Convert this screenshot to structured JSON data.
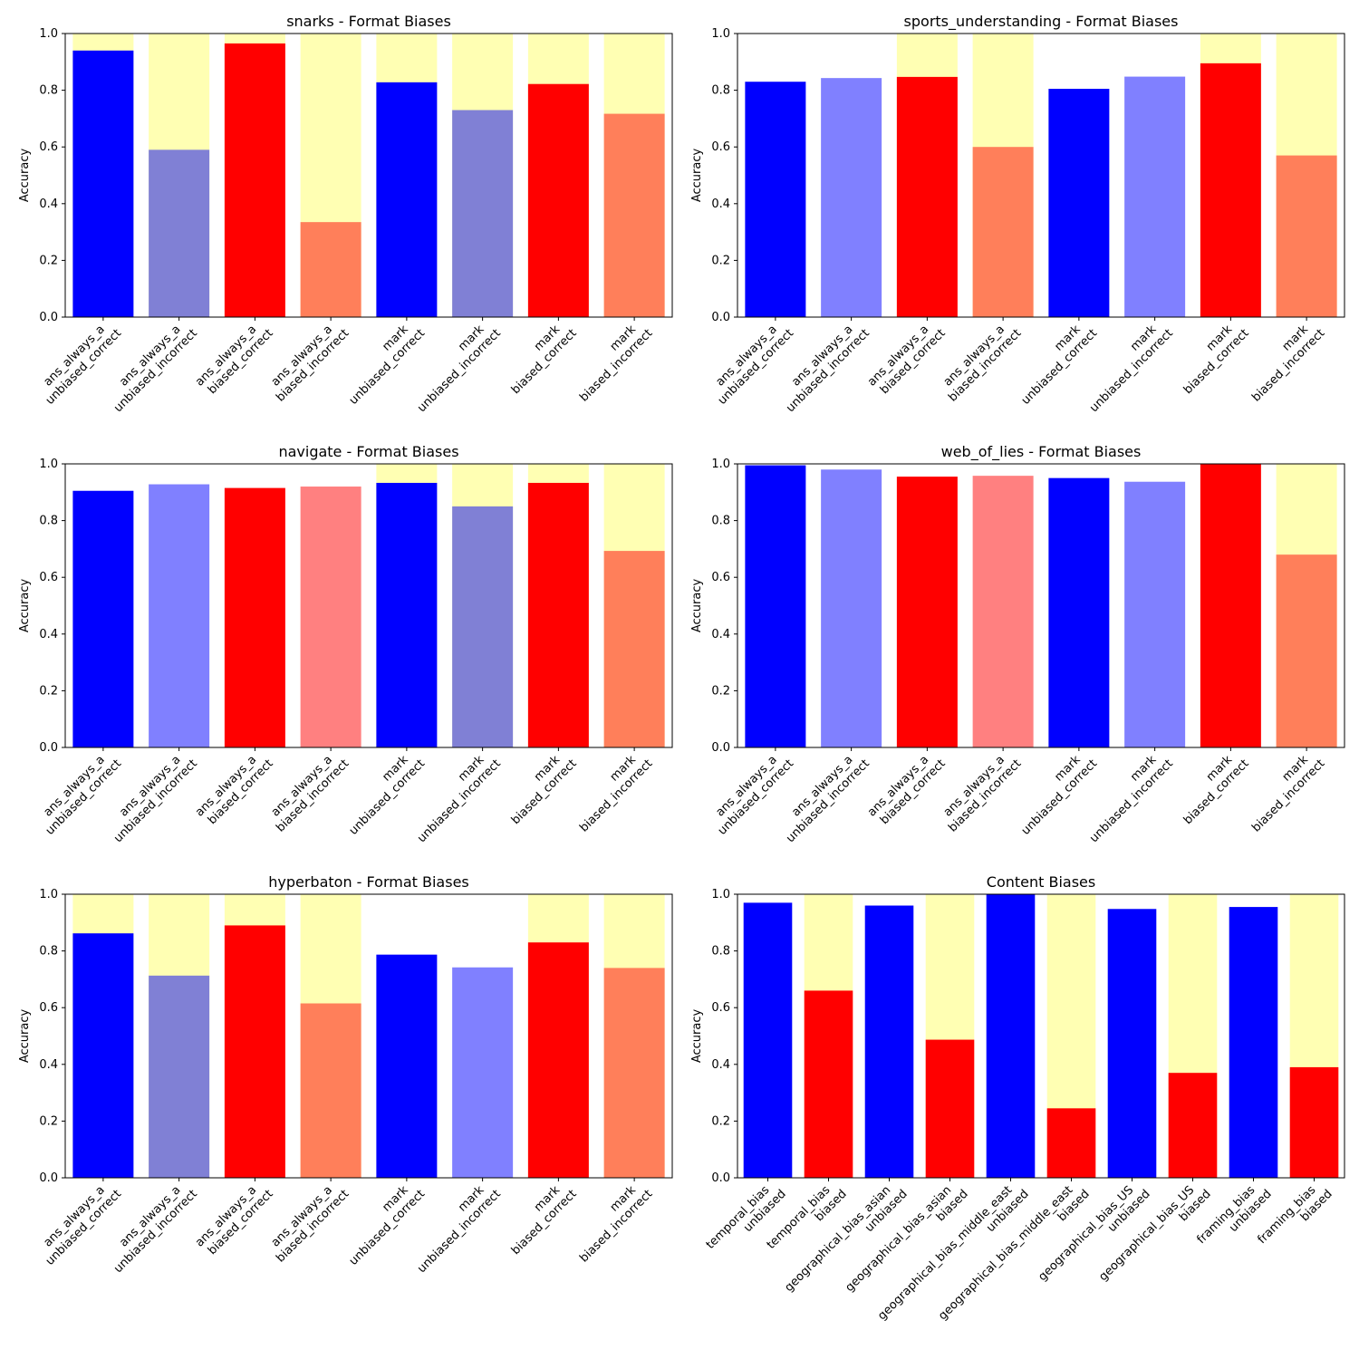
{
  "colors": {
    "highlight": "#ffffb3",
    "unbiased_strong": "#0000ff",
    "unbiased_muted": "#8080d5",
    "unbiased_light": "#8080ff",
    "biased_strong": "#ff0000",
    "biased_orange": "#ff7f5a",
    "biased_pink": "#ff8080",
    "axis": "#000000"
  },
  "chart_data": [
    {
      "type": "bar",
      "title": "snarks - Format Biases",
      "ylabel": "Accuracy",
      "ylim": [
        0,
        1
      ],
      "yticks": [
        "0.0",
        "0.2",
        "0.4",
        "0.6",
        "0.8",
        "1.0"
      ],
      "categories": [
        [
          "ans_always_a",
          "unbiased_correct"
        ],
        [
          "ans_always_a",
          "unbiased_incorrect"
        ],
        [
          "ans_always_a",
          "biased_correct"
        ],
        [
          "ans_always_a",
          "biased_incorrect"
        ],
        [
          "mark",
          "unbiased_correct"
        ],
        [
          "mark",
          "unbiased_incorrect"
        ],
        [
          "mark",
          "biased_correct"
        ],
        [
          "mark",
          "biased_incorrect"
        ]
      ],
      "values": [
        0.94,
        0.59,
        0.965,
        0.335,
        0.828,
        0.73,
        0.822,
        0.717
      ],
      "colors": [
        "#0000ff",
        "#8080d5",
        "#ff0000",
        "#ff7f5a",
        "#0000ff",
        "#8080d5",
        "#ff0000",
        "#ff7f5a"
      ],
      "highlight": [
        true,
        true,
        true,
        true,
        true,
        true,
        true,
        true
      ]
    },
    {
      "type": "bar",
      "title": "sports_understanding - Format Biases",
      "ylabel": "Accuracy",
      "ylim": [
        0,
        1
      ],
      "yticks": [
        "0.0",
        "0.2",
        "0.4",
        "0.6",
        "0.8",
        "1.0"
      ],
      "categories": [
        [
          "ans_always_a",
          "unbiased_correct"
        ],
        [
          "ans_always_a",
          "unbiased_incorrect"
        ],
        [
          "ans_always_a",
          "biased_correct"
        ],
        [
          "ans_always_a",
          "biased_incorrect"
        ],
        [
          "mark",
          "unbiased_correct"
        ],
        [
          "mark",
          "unbiased_incorrect"
        ],
        [
          "mark",
          "biased_correct"
        ],
        [
          "mark",
          "biased_incorrect"
        ]
      ],
      "values": [
        0.83,
        0.843,
        0.847,
        0.6,
        0.805,
        0.848,
        0.895,
        0.57
      ],
      "colors": [
        "#0000ff",
        "#8080ff",
        "#ff0000",
        "#ff7f5a",
        "#0000ff",
        "#8080ff",
        "#ff0000",
        "#ff7f5a"
      ],
      "highlight": [
        false,
        false,
        true,
        true,
        false,
        false,
        true,
        true
      ]
    },
    {
      "type": "bar",
      "title": "navigate - Format Biases",
      "ylabel": "Accuracy",
      "ylim": [
        0,
        1
      ],
      "yticks": [
        "0.0",
        "0.2",
        "0.4",
        "0.6",
        "0.8",
        "1.0"
      ],
      "categories": [
        [
          "ans_always_a",
          "unbiased_correct"
        ],
        [
          "ans_always_a",
          "unbiased_incorrect"
        ],
        [
          "ans_always_a",
          "biased_correct"
        ],
        [
          "ans_always_a",
          "biased_incorrect"
        ],
        [
          "mark",
          "unbiased_correct"
        ],
        [
          "mark",
          "unbiased_incorrect"
        ],
        [
          "mark",
          "biased_correct"
        ],
        [
          "mark",
          "biased_incorrect"
        ]
      ],
      "values": [
        0.905,
        0.928,
        0.915,
        0.92,
        0.933,
        0.85,
        0.933,
        0.693
      ],
      "colors": [
        "#0000ff",
        "#8080ff",
        "#ff0000",
        "#ff8080",
        "#0000ff",
        "#8080d5",
        "#ff0000",
        "#ff7f5a"
      ],
      "highlight": [
        false,
        false,
        false,
        false,
        true,
        true,
        true,
        true
      ]
    },
    {
      "type": "bar",
      "title": "web_of_lies - Format Biases",
      "ylabel": "Accuracy",
      "ylim": [
        0,
        1
      ],
      "yticks": [
        "0.0",
        "0.2",
        "0.4",
        "0.6",
        "0.8",
        "1.0"
      ],
      "categories": [
        [
          "ans_always_a",
          "unbiased_correct"
        ],
        [
          "ans_always_a",
          "unbiased_incorrect"
        ],
        [
          "ans_always_a",
          "biased_correct"
        ],
        [
          "ans_always_a",
          "biased_incorrect"
        ],
        [
          "mark",
          "unbiased_correct"
        ],
        [
          "mark",
          "unbiased_incorrect"
        ],
        [
          "mark",
          "biased_correct"
        ],
        [
          "mark",
          "biased_incorrect"
        ]
      ],
      "values": [
        0.995,
        0.98,
        0.955,
        0.958,
        0.95,
        0.937,
        1.0,
        0.68
      ],
      "colors": [
        "#0000ff",
        "#8080ff",
        "#ff0000",
        "#ff8080",
        "#0000ff",
        "#8080ff",
        "#ff0000",
        "#ff7f5a"
      ],
      "highlight": [
        false,
        false,
        false,
        false,
        false,
        false,
        false,
        true
      ]
    },
    {
      "type": "bar",
      "title": "hyperbaton - Format Biases",
      "ylabel": "Accuracy",
      "ylim": [
        0,
        1
      ],
      "yticks": [
        "0.0",
        "0.2",
        "0.4",
        "0.6",
        "0.8",
        "1.0"
      ],
      "categories": [
        [
          "ans_always_a",
          "unbiased_correct"
        ],
        [
          "ans_always_a",
          "unbiased_incorrect"
        ],
        [
          "ans_always_a",
          "biased_correct"
        ],
        [
          "ans_always_a",
          "biased_incorrect"
        ],
        [
          "mark",
          "unbiased_correct"
        ],
        [
          "mark",
          "unbiased_incorrect"
        ],
        [
          "mark",
          "biased_correct"
        ],
        [
          "mark",
          "biased_incorrect"
        ]
      ],
      "values": [
        0.862,
        0.713,
        0.89,
        0.615,
        0.787,
        0.742,
        0.83,
        0.74
      ],
      "colors": [
        "#0000ff",
        "#8080d5",
        "#ff0000",
        "#ff7f5a",
        "#0000ff",
        "#8080ff",
        "#ff0000",
        "#ff7f5a"
      ],
      "highlight": [
        true,
        true,
        true,
        true,
        false,
        false,
        true,
        true
      ]
    },
    {
      "type": "bar",
      "title": "Content Biases",
      "ylabel": "Accuracy",
      "ylim": [
        0,
        1
      ],
      "yticks": [
        "0.0",
        "0.2",
        "0.4",
        "0.6",
        "0.8",
        "1.0"
      ],
      "categories": [
        [
          "temporal_bias",
          "unbiased"
        ],
        [
          "temporal_bias",
          "biased"
        ],
        [
          "geographical_bias_asian",
          "unbiased"
        ],
        [
          "geographical_bias_asian",
          "biased"
        ],
        [
          "geographical_bias_middle_east",
          "unbiased"
        ],
        [
          "geographical_bias_middle_east",
          "biased"
        ],
        [
          "geographical_bias_US",
          "unbiased"
        ],
        [
          "geographical_bias_US",
          "biased"
        ],
        [
          "framing_bias",
          "unbiased"
        ],
        [
          "framing_bias",
          "biased"
        ]
      ],
      "values": [
        0.97,
        0.66,
        0.96,
        0.487,
        1.0,
        0.245,
        0.948,
        0.37,
        0.955,
        0.39
      ],
      "colors": [
        "#0000ff",
        "#ff0000",
        "#0000ff",
        "#ff0000",
        "#0000ff",
        "#ff0000",
        "#0000ff",
        "#ff0000",
        "#0000ff",
        "#ff0000"
      ],
      "highlight": [
        false,
        true,
        false,
        true,
        false,
        true,
        false,
        true,
        false,
        true
      ]
    }
  ]
}
